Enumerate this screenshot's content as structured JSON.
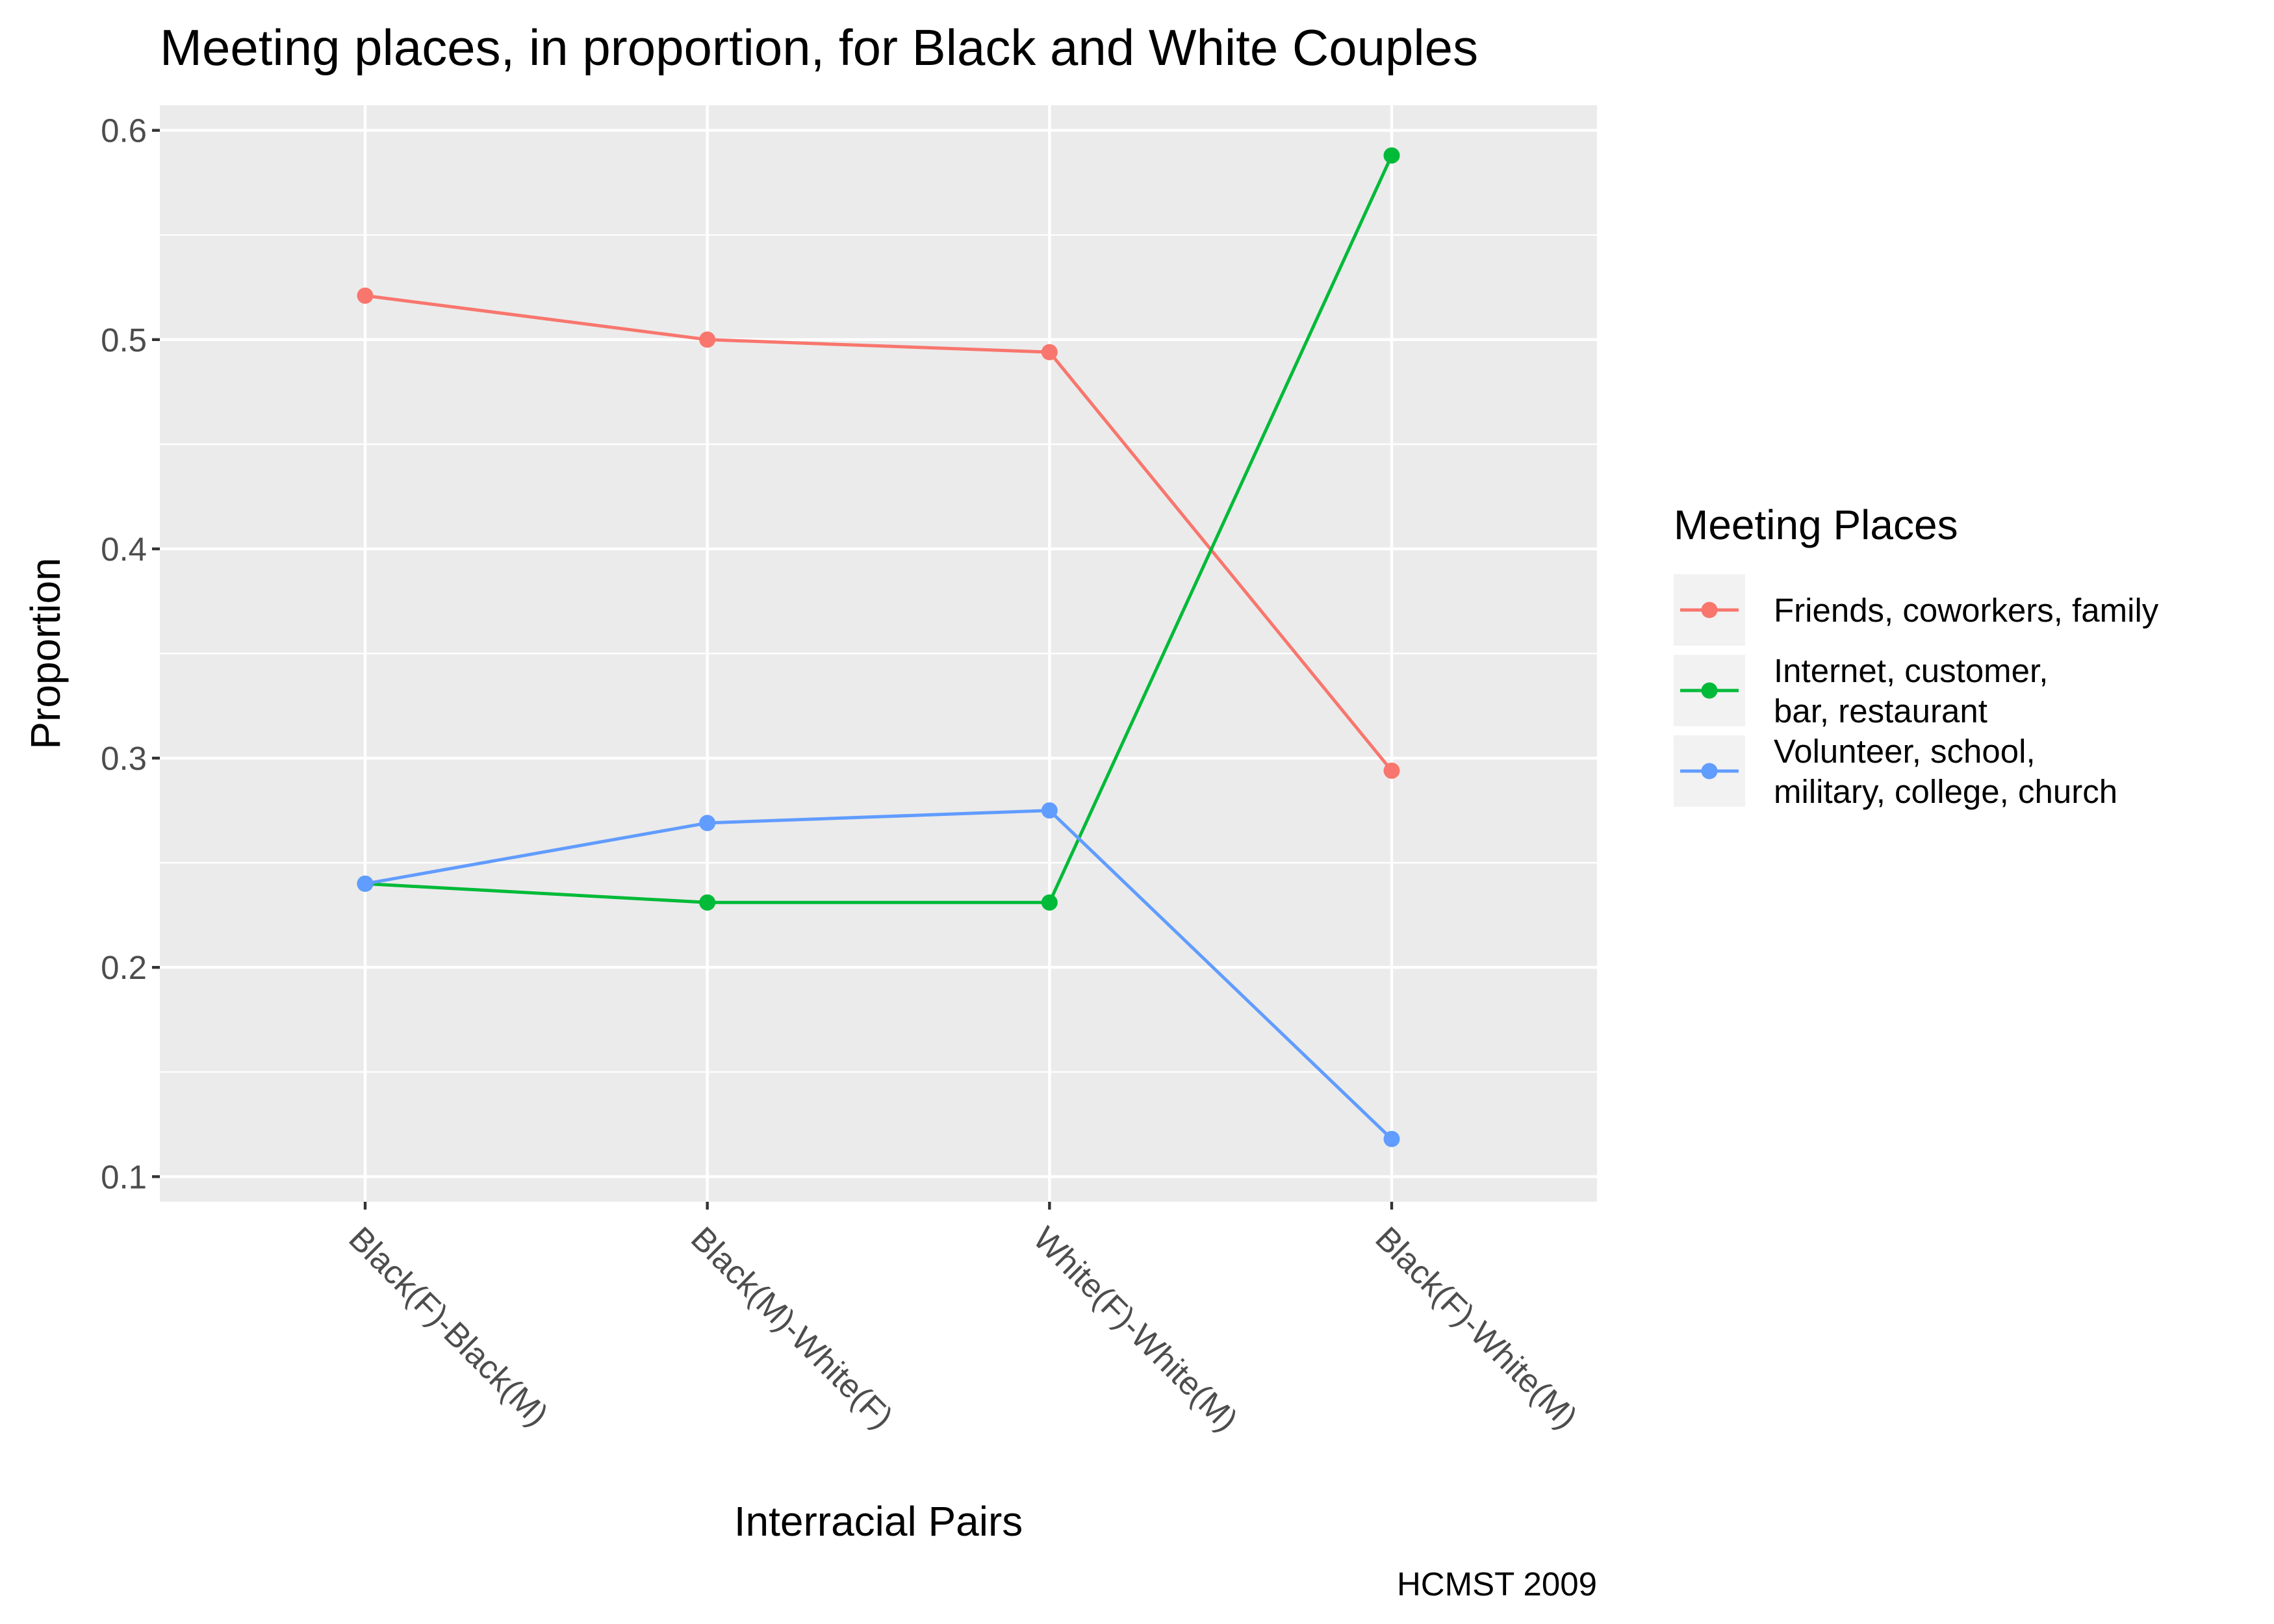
{
  "chart_data": {
    "type": "line",
    "title": "Meeting places, in proportion, for Black and White Couples",
    "xlabel": "Interracial Pairs",
    "ylabel": "Proportion",
    "caption": "HCMST 2009",
    "categories": [
      "Black(F)-Black(M)",
      "Black(M)-White(F)",
      "White(F)-White(M)",
      "Black(F)-White(M)"
    ],
    "ylim": [
      0.088,
      0.612
    ],
    "yticks": [
      "0.1",
      "0.2",
      "0.3",
      "0.4",
      "0.5",
      "0.6"
    ],
    "grid": true,
    "legend_title": "Meeting Places",
    "legend_position": "right",
    "series": [
      {
        "name": "Friends, coworkers, family",
        "name_lines": [
          "Friends, coworkers, family"
        ],
        "color": "#F8766D",
        "values": [
          0.521,
          0.5,
          0.494,
          0.294
        ]
      },
      {
        "name": "Internet, customer, bar, restaurant",
        "name_lines": [
          "Internet, customer,",
          " bar, restaurant"
        ],
        "color": "#00BA38",
        "values": [
          0.24,
          0.231,
          0.231,
          0.588
        ]
      },
      {
        "name": "Volunteer, school, military, college, church",
        "name_lines": [
          "Volunteer, school,",
          "military, college, church"
        ],
        "color": "#619CFF",
        "values": [
          0.24,
          0.269,
          0.275,
          0.118
        ]
      }
    ]
  }
}
